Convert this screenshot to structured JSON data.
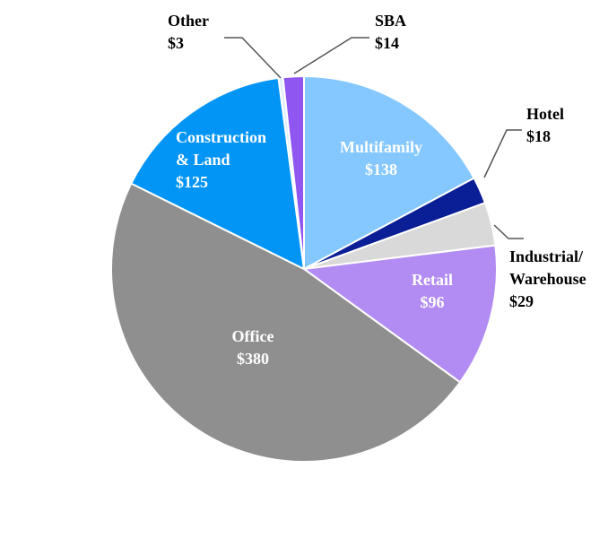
{
  "chart_data": {
    "type": "pie",
    "title": "",
    "slices": [
      {
        "category": "Multifamily",
        "value": 138,
        "value_label": "$138",
        "color": "#85C8FF",
        "label_color": "#ffffff",
        "inside": true
      },
      {
        "category": "Hotel",
        "value": 18,
        "value_label": "$18",
        "color": "#0A1E96",
        "label_color": "#000000",
        "inside": false
      },
      {
        "category": "Industrial/ Warehouse",
        "value": 29,
        "value_label": "$29",
        "color": "#D9D9D9",
        "label_color": "#000000",
        "inside": false
      },
      {
        "category": "Retail",
        "value": 96,
        "value_label": "$96",
        "color": "#B28CF2",
        "label_color": "#ffffff",
        "inside": true
      },
      {
        "category": "Office",
        "value": 380,
        "value_label": "$380",
        "color": "#8F8F8F",
        "label_color": "#ffffff",
        "inside": true
      },
      {
        "category": "Construction & Land",
        "value": 125,
        "value_label": "$125",
        "color": "#0395F5",
        "label_color": "#ffffff",
        "inside": true
      },
      {
        "category": "Other",
        "value": 3,
        "value_label": "$3",
        "color": "#E1EEFA",
        "label_color": "#000000",
        "inside": false
      },
      {
        "category": "SBA",
        "value": 14,
        "value_label": "$14",
        "color": "#8F56F2",
        "label_color": "#000000",
        "inside": false
      }
    ]
  }
}
